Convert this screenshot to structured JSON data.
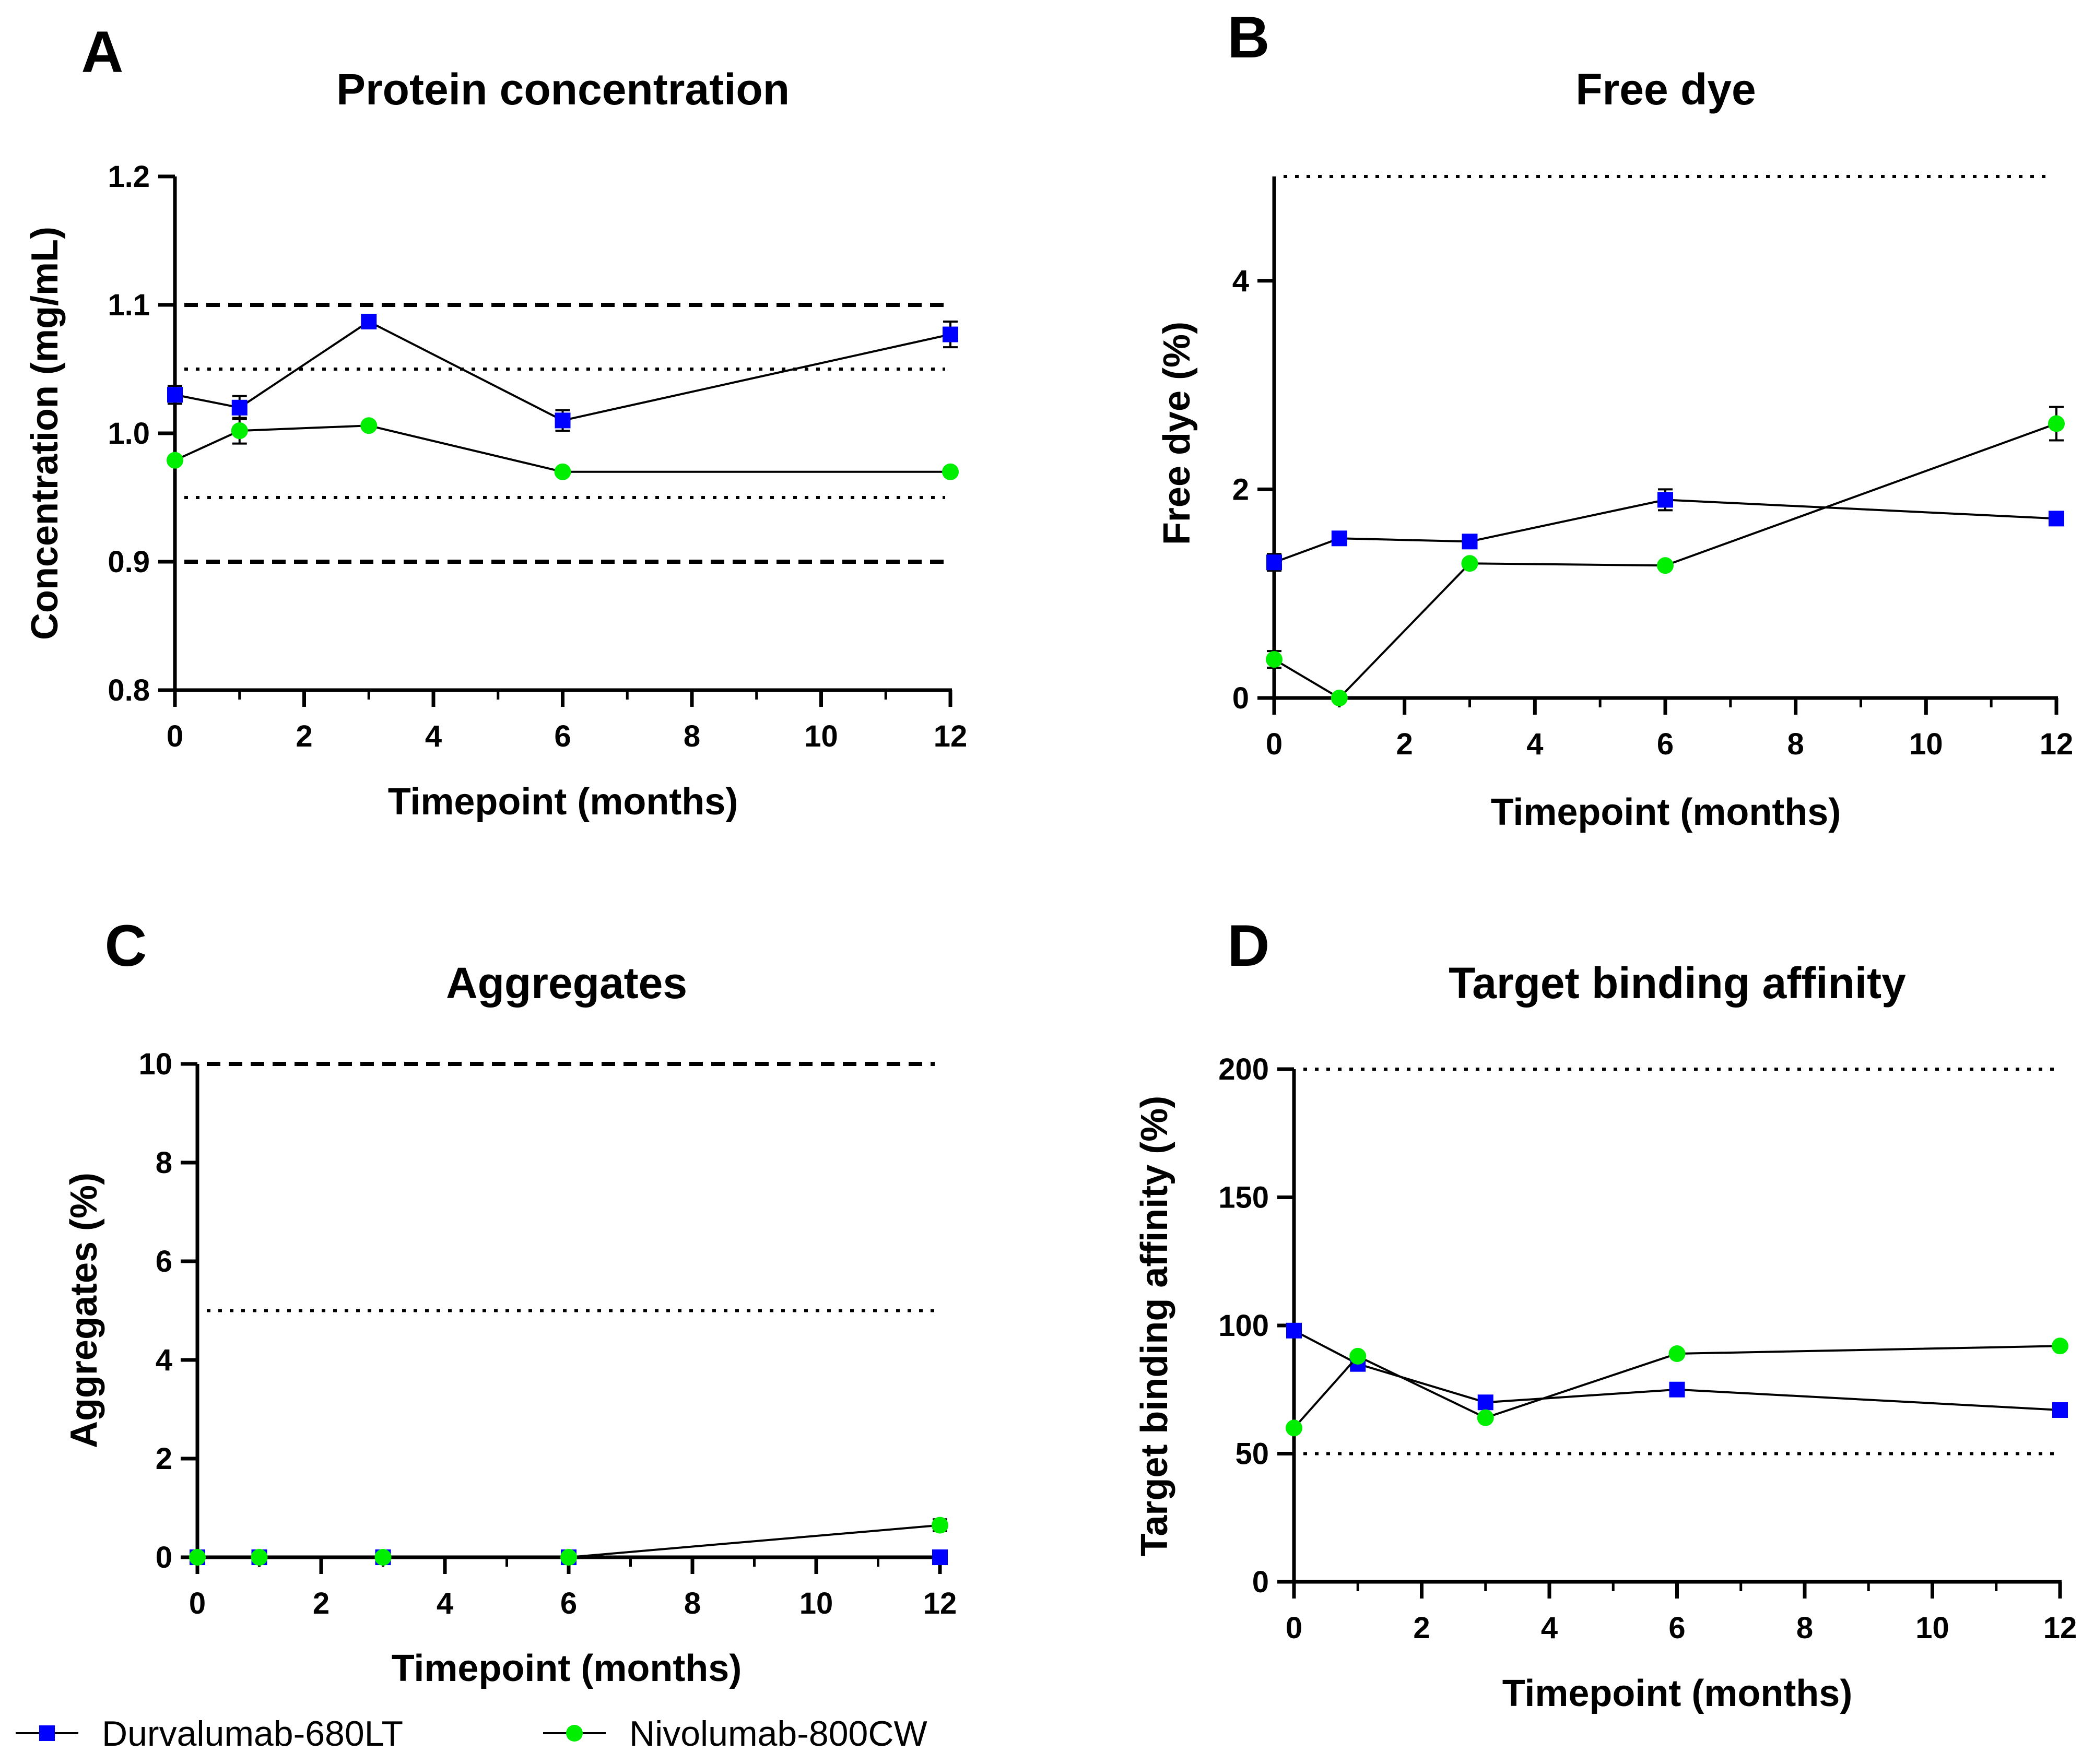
{
  "legend": {
    "series": [
      {
        "name": "Durvalumab-680LT",
        "color": "#0000ff",
        "marker": "square"
      },
      {
        "name": "Nivolumab-800CW",
        "color": "#00ee00",
        "marker": "circle"
      }
    ]
  },
  "chart_data": [
    {
      "panel": "A",
      "type": "line",
      "title": "Protein concentration",
      "xlabel": "Timepoint (months)",
      "ylabel": "Concentration (mg/mL)",
      "xlim": [
        0,
        12
      ],
      "ylim": [
        0.8,
        1.2
      ],
      "xticks": [
        0,
        2,
        4,
        6,
        8,
        10,
        12
      ],
      "yticks": [
        0.8,
        0.9,
        1.0,
        1.1,
        1.2
      ],
      "ytick_labels": [
        "0.8",
        "0.9",
        "1.0",
        "1.1",
        "1.2"
      ],
      "reference_lines": [
        {
          "y": 1.1,
          "style": "dashed"
        },
        {
          "y": 0.9,
          "style": "dashed"
        },
        {
          "y": 1.05,
          "style": "dotted"
        },
        {
          "y": 0.95,
          "style": "dotted"
        }
      ],
      "series": [
        {
          "name": "Durvalumab-680LT",
          "x": [
            0,
            1,
            3,
            6,
            12
          ],
          "values": [
            1.03,
            1.02,
            1.087,
            1.01,
            1.077
          ],
          "err": [
            0.007,
            0.009,
            0.003,
            0.008,
            0.01
          ]
        },
        {
          "name": "Nivolumab-800CW",
          "x": [
            0,
            1,
            3,
            6,
            12
          ],
          "values": [
            0.979,
            1.002,
            1.006,
            0.97,
            0.97
          ],
          "err": [
            0,
            0.01,
            0,
            0,
            0
          ]
        }
      ]
    },
    {
      "panel": "B",
      "type": "line",
      "title": "Free dye",
      "xlabel": "Timepoint (months)",
      "ylabel": "Free dye (%)",
      "xlim": [
        0,
        12
      ],
      "ylim": [
        0,
        5
      ],
      "xticks": [
        0,
        2,
        4,
        6,
        8,
        10,
        12
      ],
      "yticks": [
        0,
        2,
        4
      ],
      "ytick_labels": [
        "0",
        "2",
        "4"
      ],
      "reference_lines": [
        {
          "y": 5,
          "style": "dotted"
        }
      ],
      "series": [
        {
          "name": "Durvalumab-680LT",
          "x": [
            0,
            1,
            3,
            6,
            12
          ],
          "values": [
            1.3,
            1.53,
            1.5,
            1.9,
            1.72
          ],
          "err": [
            0.08,
            0.02,
            0.02,
            0.1,
            0.02
          ]
        },
        {
          "name": "Nivolumab-800CW",
          "x": [
            0,
            1,
            3,
            6,
            12
          ],
          "values": [
            0.37,
            0.0,
            1.29,
            1.27,
            2.63
          ],
          "err": [
            0.08,
            0,
            0,
            0,
            0.16
          ]
        }
      ]
    },
    {
      "panel": "C",
      "type": "line",
      "title": "Aggregates",
      "xlabel": "Timepoint (months)",
      "ylabel": "Aggregates (%)",
      "xlim": [
        0,
        12
      ],
      "ylim": [
        0,
        10
      ],
      "xticks": [
        0,
        2,
        4,
        6,
        8,
        10,
        12
      ],
      "yticks": [
        0,
        2,
        4,
        6,
        8,
        10
      ],
      "ytick_labels": [
        "0",
        "2",
        "4",
        "6",
        "8",
        "10"
      ],
      "reference_lines": [
        {
          "y": 10,
          "style": "dashed"
        },
        {
          "y": 5,
          "style": "dotted"
        }
      ],
      "series": [
        {
          "name": "Durvalumab-680LT",
          "x": [
            0,
            1,
            3,
            6,
            12
          ],
          "values": [
            0,
            0,
            0,
            0,
            0
          ],
          "err": [
            0,
            0,
            0,
            0,
            0
          ]
        },
        {
          "name": "Nivolumab-800CW",
          "x": [
            0,
            1,
            3,
            6,
            12
          ],
          "values": [
            0,
            0,
            0,
            0,
            0.65
          ],
          "err": [
            0,
            0,
            0,
            0,
            0.12
          ]
        }
      ]
    },
    {
      "panel": "D",
      "type": "line",
      "title": "Target binding affinity",
      "xlabel": "Timepoint (months)",
      "ylabel": "Target binding affinity (%)",
      "xlim": [
        0,
        12
      ],
      "ylim": [
        0,
        200
      ],
      "xticks": [
        0,
        2,
        4,
        6,
        8,
        10,
        12
      ],
      "yticks": [
        0,
        50,
        100,
        150,
        200
      ],
      "ytick_labels": [
        "0",
        "50",
        "100",
        "150",
        "200"
      ],
      "reference_lines": [
        {
          "y": 200,
          "style": "dotted"
        },
        {
          "y": 50,
          "style": "dotted"
        }
      ],
      "series": [
        {
          "name": "Durvalumab-680LT",
          "x": [
            0,
            1,
            3,
            6,
            12
          ],
          "values": [
            98,
            85,
            70,
            75,
            67
          ],
          "err": [
            0,
            0,
            0,
            0,
            0
          ]
        },
        {
          "name": "Nivolumab-800CW",
          "x": [
            0,
            1,
            3,
            6,
            12
          ],
          "values": [
            60,
            88,
            64,
            89,
            92
          ],
          "err": [
            0,
            0,
            0,
            0,
            0
          ]
        }
      ]
    }
  ]
}
